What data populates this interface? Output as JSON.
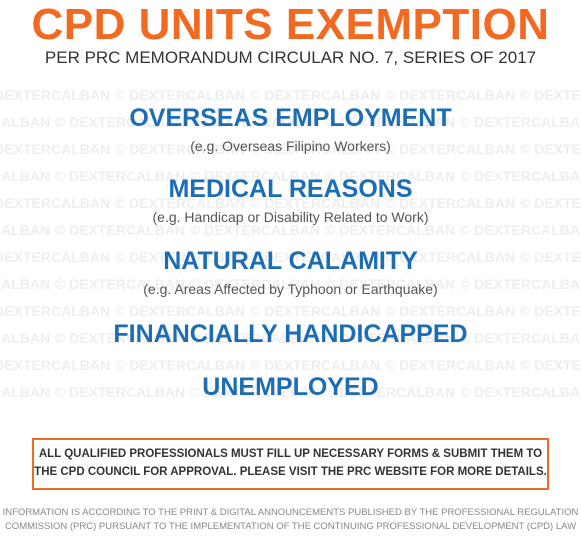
{
  "header": {
    "title": "CPD UNITS EXEMPTION",
    "subtitle": "PER PRC MEMORANDUM CIRCULAR NO. 7, SERIES OF 2017"
  },
  "watermark": "© DEXTERCALBAN",
  "items": [
    {
      "title": "OVERSEAS EMPLOYMENT",
      "note": "(e.g. Overseas Filipino Workers)"
    },
    {
      "title": "MEDICAL REASONS",
      "note": "(e.g. Handicap or Disability Related to Work)"
    },
    {
      "title": "NATURAL CALAMITY",
      "note": "(e.g. Areas Affected by Typhoon or Earthquake)"
    },
    {
      "title": "FINANCIALLY HANDICAPPED"
    },
    {
      "title": "UNEMPLOYED"
    }
  ],
  "notice": {
    "lines": [
      "ALL QUALIFIED PROFESSIONALS MUST FILL UP NECESSARY FORMS & SUBMIT THEM TO",
      "THE CPD COUNCIL FOR APPROVAL. PLEASE VISIT THE PRC WEBSITE FOR MORE DETAILS."
    ]
  },
  "footer": {
    "lines": [
      "INFORMATION IS ACCORDING TO THE PRINT & DIGITAL ANNOUNCEMENTS PUBLISHED BY THE PROFESSIONAL REGULATION",
      "COMMISSION (PRC) PURSUANT TO THE IMPLEMENTATION OF THE CONTINUING PROFESSIONAL DEVELOPMENT (CPD) LAW"
    ]
  }
}
